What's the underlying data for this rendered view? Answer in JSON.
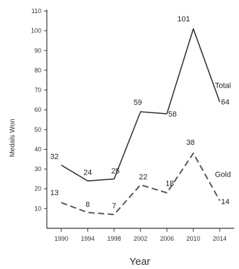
{
  "chart_data": {
    "type": "line",
    "xlabel": "Year",
    "ylabel": "Medals Won",
    "categories": [
      "1990",
      "1994",
      "1998",
      "2002",
      "2006",
      "2010",
      "2014"
    ],
    "x": [
      1990,
      1994,
      1998,
      2002,
      2006,
      2010,
      2014
    ],
    "ylim": [
      0,
      110
    ],
    "yticks": [
      10,
      20,
      30,
      40,
      50,
      60,
      70,
      80,
      90,
      100,
      110
    ],
    "grid": false,
    "series": [
      {
        "name": "Total",
        "style": "solid",
        "color": "#333333",
        "values": [
          32,
          24,
          25,
          59,
          58,
          101,
          64
        ]
      },
      {
        "name": "Gold",
        "style": "dashed",
        "color": "#555555",
        "values": [
          13,
          8,
          7,
          22,
          18,
          38,
          14
        ]
      }
    ]
  }
}
